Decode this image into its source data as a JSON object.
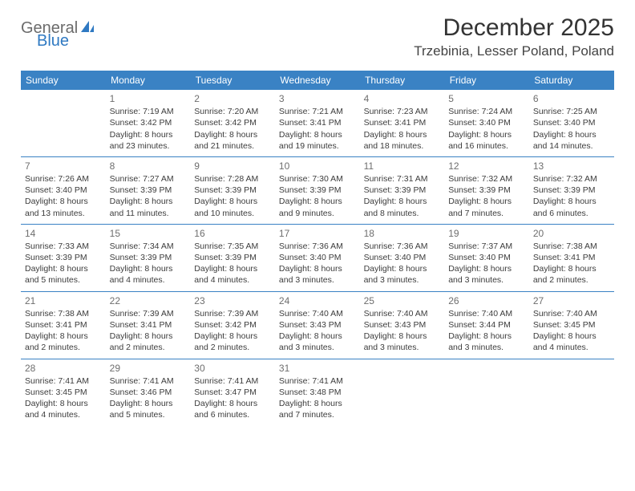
{
  "brand": {
    "part1": "General",
    "part2": "Blue",
    "logo_color": "#2f79c2",
    "text_gray": "#6b6b6b"
  },
  "title": "December 2025",
  "location": "Trzebinia, Lesser Poland, Poland",
  "colors": {
    "header_bg": "#3a82c4",
    "header_text": "#ffffff",
    "rule": "#3a82c4",
    "body_text": "#3c3c3c",
    "daynum": "#6e6e6e",
    "page_bg": "#ffffff"
  },
  "weekdays": [
    "Sunday",
    "Monday",
    "Tuesday",
    "Wednesday",
    "Thursday",
    "Friday",
    "Saturday"
  ],
  "weeks": [
    [
      null,
      {
        "d": "1",
        "sr": "Sunrise: 7:19 AM",
        "ss": "Sunset: 3:42 PM",
        "dl1": "Daylight: 8 hours",
        "dl2": "and 23 minutes."
      },
      {
        "d": "2",
        "sr": "Sunrise: 7:20 AM",
        "ss": "Sunset: 3:42 PM",
        "dl1": "Daylight: 8 hours",
        "dl2": "and 21 minutes."
      },
      {
        "d": "3",
        "sr": "Sunrise: 7:21 AM",
        "ss": "Sunset: 3:41 PM",
        "dl1": "Daylight: 8 hours",
        "dl2": "and 19 minutes."
      },
      {
        "d": "4",
        "sr": "Sunrise: 7:23 AM",
        "ss": "Sunset: 3:41 PM",
        "dl1": "Daylight: 8 hours",
        "dl2": "and 18 minutes."
      },
      {
        "d": "5",
        "sr": "Sunrise: 7:24 AM",
        "ss": "Sunset: 3:40 PM",
        "dl1": "Daylight: 8 hours",
        "dl2": "and 16 minutes."
      },
      {
        "d": "6",
        "sr": "Sunrise: 7:25 AM",
        "ss": "Sunset: 3:40 PM",
        "dl1": "Daylight: 8 hours",
        "dl2": "and 14 minutes."
      }
    ],
    [
      {
        "d": "7",
        "sr": "Sunrise: 7:26 AM",
        "ss": "Sunset: 3:40 PM",
        "dl1": "Daylight: 8 hours",
        "dl2": "and 13 minutes."
      },
      {
        "d": "8",
        "sr": "Sunrise: 7:27 AM",
        "ss": "Sunset: 3:39 PM",
        "dl1": "Daylight: 8 hours",
        "dl2": "and 11 minutes."
      },
      {
        "d": "9",
        "sr": "Sunrise: 7:28 AM",
        "ss": "Sunset: 3:39 PM",
        "dl1": "Daylight: 8 hours",
        "dl2": "and 10 minutes."
      },
      {
        "d": "10",
        "sr": "Sunrise: 7:30 AM",
        "ss": "Sunset: 3:39 PM",
        "dl1": "Daylight: 8 hours",
        "dl2": "and 9 minutes."
      },
      {
        "d": "11",
        "sr": "Sunrise: 7:31 AM",
        "ss": "Sunset: 3:39 PM",
        "dl1": "Daylight: 8 hours",
        "dl2": "and 8 minutes."
      },
      {
        "d": "12",
        "sr": "Sunrise: 7:32 AM",
        "ss": "Sunset: 3:39 PM",
        "dl1": "Daylight: 8 hours",
        "dl2": "and 7 minutes."
      },
      {
        "d": "13",
        "sr": "Sunrise: 7:32 AM",
        "ss": "Sunset: 3:39 PM",
        "dl1": "Daylight: 8 hours",
        "dl2": "and 6 minutes."
      }
    ],
    [
      {
        "d": "14",
        "sr": "Sunrise: 7:33 AM",
        "ss": "Sunset: 3:39 PM",
        "dl1": "Daylight: 8 hours",
        "dl2": "and 5 minutes."
      },
      {
        "d": "15",
        "sr": "Sunrise: 7:34 AM",
        "ss": "Sunset: 3:39 PM",
        "dl1": "Daylight: 8 hours",
        "dl2": "and 4 minutes."
      },
      {
        "d": "16",
        "sr": "Sunrise: 7:35 AM",
        "ss": "Sunset: 3:39 PM",
        "dl1": "Daylight: 8 hours",
        "dl2": "and 4 minutes."
      },
      {
        "d": "17",
        "sr": "Sunrise: 7:36 AM",
        "ss": "Sunset: 3:40 PM",
        "dl1": "Daylight: 8 hours",
        "dl2": "and 3 minutes."
      },
      {
        "d": "18",
        "sr": "Sunrise: 7:36 AM",
        "ss": "Sunset: 3:40 PM",
        "dl1": "Daylight: 8 hours",
        "dl2": "and 3 minutes."
      },
      {
        "d": "19",
        "sr": "Sunrise: 7:37 AM",
        "ss": "Sunset: 3:40 PM",
        "dl1": "Daylight: 8 hours",
        "dl2": "and 3 minutes."
      },
      {
        "d": "20",
        "sr": "Sunrise: 7:38 AM",
        "ss": "Sunset: 3:41 PM",
        "dl1": "Daylight: 8 hours",
        "dl2": "and 2 minutes."
      }
    ],
    [
      {
        "d": "21",
        "sr": "Sunrise: 7:38 AM",
        "ss": "Sunset: 3:41 PM",
        "dl1": "Daylight: 8 hours",
        "dl2": "and 2 minutes."
      },
      {
        "d": "22",
        "sr": "Sunrise: 7:39 AM",
        "ss": "Sunset: 3:41 PM",
        "dl1": "Daylight: 8 hours",
        "dl2": "and 2 minutes."
      },
      {
        "d": "23",
        "sr": "Sunrise: 7:39 AM",
        "ss": "Sunset: 3:42 PM",
        "dl1": "Daylight: 8 hours",
        "dl2": "and 2 minutes."
      },
      {
        "d": "24",
        "sr": "Sunrise: 7:40 AM",
        "ss": "Sunset: 3:43 PM",
        "dl1": "Daylight: 8 hours",
        "dl2": "and 3 minutes."
      },
      {
        "d": "25",
        "sr": "Sunrise: 7:40 AM",
        "ss": "Sunset: 3:43 PM",
        "dl1": "Daylight: 8 hours",
        "dl2": "and 3 minutes."
      },
      {
        "d": "26",
        "sr": "Sunrise: 7:40 AM",
        "ss": "Sunset: 3:44 PM",
        "dl1": "Daylight: 8 hours",
        "dl2": "and 3 minutes."
      },
      {
        "d": "27",
        "sr": "Sunrise: 7:40 AM",
        "ss": "Sunset: 3:45 PM",
        "dl1": "Daylight: 8 hours",
        "dl2": "and 4 minutes."
      }
    ],
    [
      {
        "d": "28",
        "sr": "Sunrise: 7:41 AM",
        "ss": "Sunset: 3:45 PM",
        "dl1": "Daylight: 8 hours",
        "dl2": "and 4 minutes."
      },
      {
        "d": "29",
        "sr": "Sunrise: 7:41 AM",
        "ss": "Sunset: 3:46 PM",
        "dl1": "Daylight: 8 hours",
        "dl2": "and 5 minutes."
      },
      {
        "d": "30",
        "sr": "Sunrise: 7:41 AM",
        "ss": "Sunset: 3:47 PM",
        "dl1": "Daylight: 8 hours",
        "dl2": "and 6 minutes."
      },
      {
        "d": "31",
        "sr": "Sunrise: 7:41 AM",
        "ss": "Sunset: 3:48 PM",
        "dl1": "Daylight: 8 hours",
        "dl2": "and 7 minutes."
      },
      null,
      null,
      null
    ]
  ]
}
